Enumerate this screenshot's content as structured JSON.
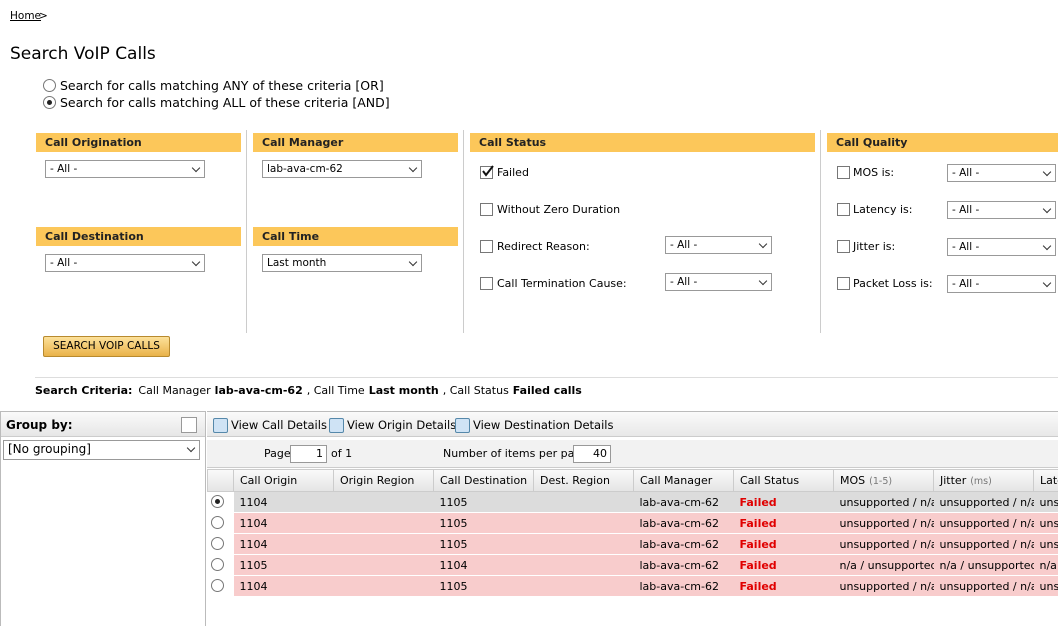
{
  "breadcrumb": {
    "home": "Home",
    "separator": ">"
  },
  "title": "Search VoIP Calls",
  "match_options": [
    {
      "label": "Search for calls matching ANY of these criteria [OR]",
      "selected": false
    },
    {
      "label": "Search for calls matching ALL of these criteria [AND]",
      "selected": true
    }
  ],
  "filters": {
    "call_origination": {
      "title": "Call Origination",
      "value": "- All -"
    },
    "call_destination": {
      "title": "Call Destination",
      "value": "- All -"
    },
    "call_manager": {
      "title": "Call Manager",
      "value": "lab-ava-cm-62"
    },
    "call_time": {
      "title": "Call Time",
      "value": "Last month"
    },
    "call_status": {
      "title": "Call Status",
      "options": [
        {
          "label": "Failed",
          "checked": true
        },
        {
          "label": "Without Zero Duration",
          "checked": false
        },
        {
          "label": "Redirect Reason:",
          "checked": false,
          "value": "- All -"
        },
        {
          "label": "Call Termination Cause:",
          "checked": false,
          "value": "- All -"
        }
      ]
    },
    "call_quality": {
      "title": "Call Quality",
      "options": [
        {
          "label": "MOS is:",
          "checked": false,
          "value": "- All -"
        },
        {
          "label": "Latency is:",
          "checked": false,
          "value": "- All -"
        },
        {
          "label": "Jitter is:",
          "checked": false,
          "value": "- All -"
        },
        {
          "label": "Packet Loss is:",
          "checked": false,
          "value": "- All -"
        }
      ]
    }
  },
  "search_button": "SEARCH VOIP CALLS",
  "search_criteria": {
    "label": "Search Criteria:",
    "parts": [
      {
        "text": "Call Manager",
        "bold": false
      },
      {
        "text": "lab-ava-cm-62",
        "bold": true
      },
      {
        "text": ", Call Time",
        "bold": false
      },
      {
        "text": "Last month",
        "bold": true
      },
      {
        "text": ", Call Status",
        "bold": false
      },
      {
        "text": "Failed calls",
        "bold": true
      }
    ]
  },
  "group_by": {
    "title": "Group by:",
    "value": "[No grouping]"
  },
  "toolbar": [
    "View Call Details",
    "View Origin Details",
    "View Destination Details"
  ],
  "pager": {
    "page_label": "Page",
    "page": 1,
    "of": "of 1",
    "items_label": "Number of items per page:",
    "items": 40
  },
  "table": {
    "columns": [
      {
        "name": "Call Origin"
      },
      {
        "name": "Origin Region"
      },
      {
        "name": "Call Destination"
      },
      {
        "name": "Dest. Region"
      },
      {
        "name": "Call Manager"
      },
      {
        "name": "Call Status"
      },
      {
        "name": "MOS",
        "unit": "(1-5)"
      },
      {
        "name": "Jitter",
        "unit": "(ms)"
      },
      {
        "name": "Latency"
      }
    ],
    "rows": [
      {
        "selected": true,
        "cells": [
          "1104",
          "",
          "1105",
          "",
          "lab-ava-cm-62",
          "Failed",
          "unsupported / n/a",
          "unsupported / n/a",
          "unsupported / n/a"
        ]
      },
      {
        "selected": false,
        "cells": [
          "1104",
          "",
          "1105",
          "",
          "lab-ava-cm-62",
          "Failed",
          "unsupported / n/a",
          "unsupported / n/a",
          "unsupported / n/a"
        ]
      },
      {
        "selected": false,
        "cells": [
          "1104",
          "",
          "1105",
          "",
          "lab-ava-cm-62",
          "Failed",
          "unsupported / n/a",
          "unsupported / n/a",
          "unsupported / n/a"
        ]
      },
      {
        "selected": false,
        "cells": [
          "1105",
          "",
          "1104",
          "",
          "lab-ava-cm-62",
          "Failed",
          "n/a / unsupported",
          "n/a / unsupported",
          "n/a / unsupported"
        ]
      },
      {
        "selected": false,
        "cells": [
          "1104",
          "",
          "1105",
          "",
          "lab-ava-cm-62",
          "Failed",
          "unsupported / n/a",
          "unsupported / n/a",
          "unsupported / n/a"
        ]
      }
    ]
  }
}
